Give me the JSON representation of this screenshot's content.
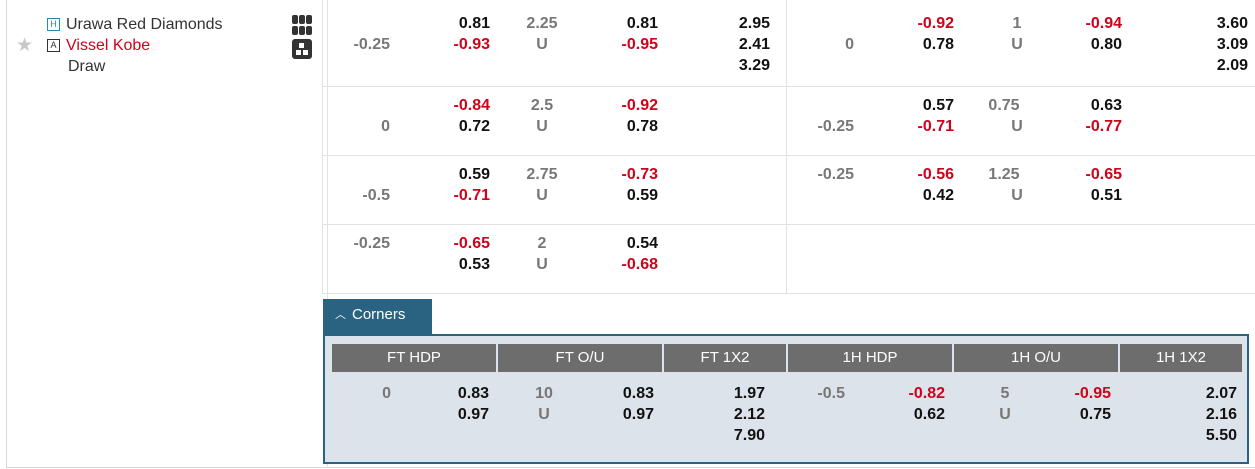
{
  "match": {
    "home_badge": "H",
    "away_badge": "A",
    "home": "Urawa Red Diamonds",
    "away": "Vissel Kobe",
    "draw": "Draw",
    "favorite_icon": "star-icon",
    "icons": [
      "lineup-icon",
      "stats-icon"
    ]
  },
  "rows": [
    {
      "ft_hdp": {
        "line_top": "",
        "line_mid": "-0.25",
        "home": "0.81",
        "away": "-0.93"
      },
      "ft_ou": {
        "line": "2.25",
        "u": "U",
        "over": "0.81",
        "under": "-0.95"
      },
      "ft_1x2": [
        "2.95",
        "2.41",
        "3.29"
      ],
      "h1_hdp": {
        "line_top": "",
        "line_mid": "0",
        "home": "-0.92",
        "away": "0.78"
      },
      "h1_ou": {
        "line": "1",
        "u": "U",
        "over": "-0.94",
        "under": "0.80"
      },
      "h1_1x2": [
        "3.60",
        "3.09",
        "2.09"
      ]
    },
    {
      "ft_hdp": {
        "line_top": "",
        "line_mid": "0",
        "home": "-0.84",
        "away": "0.72"
      },
      "ft_ou": {
        "line": "2.5",
        "u": "U",
        "over": "-0.92",
        "under": "0.78"
      },
      "h1_hdp": {
        "line_top": "",
        "line_mid": "-0.25",
        "home": "0.57",
        "away": "-0.71"
      },
      "h1_ou": {
        "line": "0.75",
        "u": "U",
        "over": "0.63",
        "under": "-0.77"
      }
    },
    {
      "ft_hdp": {
        "line_top": "",
        "line_mid": "-0.5",
        "home": "0.59",
        "away": "-0.71"
      },
      "ft_ou": {
        "line": "2.75",
        "u": "U",
        "over": "-0.73",
        "under": "0.59"
      },
      "h1_hdp": {
        "line_top": "-0.25",
        "line_mid": "",
        "home": "-0.56",
        "away": "0.42"
      },
      "h1_ou": {
        "line": "1.25",
        "u": "U",
        "over": "-0.65",
        "under": "0.51"
      }
    },
    {
      "ft_hdp": {
        "line_top": "-0.25",
        "line_mid": "",
        "home": "-0.65",
        "away": "0.53"
      },
      "ft_ou": {
        "line": "2",
        "u": "U",
        "over": "0.54",
        "under": "-0.68"
      }
    }
  ],
  "corners": {
    "tab_label": "Corners",
    "tab_icon": "chevron-up-icon",
    "headers": [
      "FT HDP",
      "FT O/U",
      "FT 1X2",
      "1H HDP",
      "1H O/U",
      "1H 1X2"
    ],
    "ft_hdp": {
      "line": "0",
      "home": "0.83",
      "away": "0.97"
    },
    "ft_ou": {
      "line": "10",
      "u": "U",
      "over": "0.83",
      "under": "0.97"
    },
    "ft_1x2": [
      "1.97",
      "2.12",
      "7.90"
    ],
    "h1_hdp": {
      "line": "-0.5",
      "home": "-0.82",
      "away": "0.62"
    },
    "h1_ou": {
      "line": "5",
      "u": "U",
      "over": "-0.95",
      "under": "0.75"
    },
    "h1_1x2": [
      "2.07",
      "2.16",
      "5.50"
    ]
  },
  "colors": {
    "negative": "#d0021b",
    "tab": "#2a6381",
    "header": "#6d6d6d",
    "panel": "#dce3ea"
  }
}
